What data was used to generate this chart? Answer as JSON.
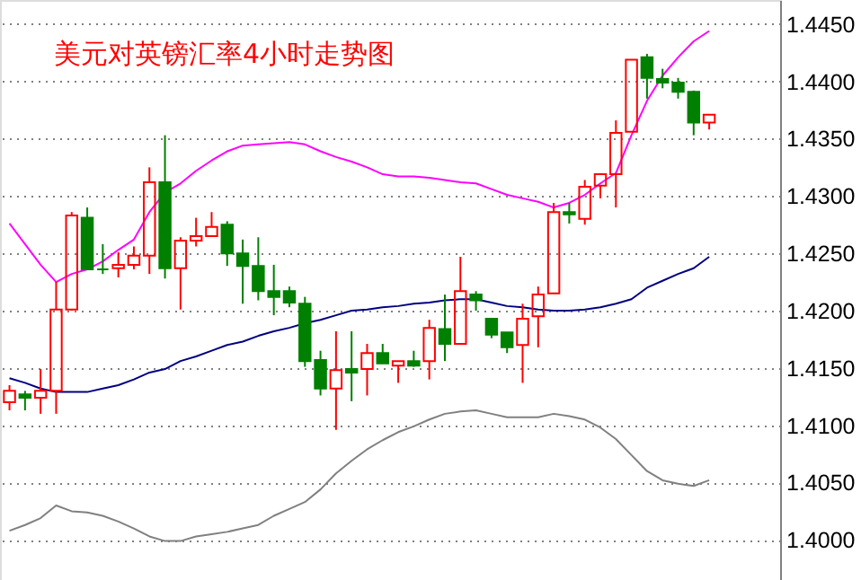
{
  "chart_data": {
    "type": "candlestick",
    "title": "美元对英镑汇率4小时走势图",
    "categories": [
      null,
      null,
      null,
      null,
      null,
      null,
      null,
      null,
      null,
      null,
      null,
      null,
      null,
      null,
      null,
      null,
      null,
      null,
      null,
      null,
      null,
      null,
      null,
      null,
      null,
      null,
      null,
      null,
      null,
      null,
      null,
      null,
      null,
      null,
      null,
      null,
      null,
      null,
      null,
      null,
      null,
      null,
      null,
      null,
      null,
      null
    ],
    "ohlc": [
      [
        1.412,
        1.4135,
        1.4113,
        1.413
      ],
      [
        1.4127,
        1.413,
        1.4113,
        1.4124
      ],
      [
        1.4124,
        1.4149,
        1.411,
        1.413
      ],
      [
        1.413,
        1.4225,
        1.411,
        1.4201
      ],
      [
        1.4201,
        1.4286,
        1.42,
        1.4283
      ],
      [
        1.4281,
        1.429,
        1.4236,
        1.4236
      ],
      [
        1.4236,
        1.4258,
        1.4232,
        1.4236
      ],
      [
        1.4237,
        1.4251,
        1.4229,
        1.424
      ],
      [
        1.424,
        1.4256,
        1.4236,
        1.4248
      ],
      [
        1.4248,
        1.4325,
        1.4232,
        1.4312
      ],
      [
        1.4312,
        1.4353,
        1.4228,
        1.4237
      ],
      [
        1.4237,
        1.4264,
        1.4201,
        1.4261
      ],
      [
        1.4261,
        1.4281,
        1.4256,
        1.4265
      ],
      [
        1.4265,
        1.4286,
        1.4265,
        1.4273
      ],
      [
        1.4275,
        1.4278,
        1.4239,
        1.425
      ],
      [
        1.425,
        1.4262,
        1.4206,
        1.4239
      ],
      [
        1.4239,
        1.4264,
        1.4209,
        1.4217
      ],
      [
        1.4217,
        1.424,
        1.4196,
        1.4212
      ],
      [
        1.4217,
        1.4221,
        1.4203,
        1.4207
      ],
      [
        1.4206,
        1.4212,
        1.4151,
        1.4156
      ],
      [
        1.4157,
        1.4165,
        1.4126,
        1.4132
      ],
      [
        1.4132,
        1.4182,
        1.4096,
        1.4148
      ],
      [
        1.4149,
        1.4182,
        1.4121,
        1.4146
      ],
      [
        1.4149,
        1.4171,
        1.4126,
        1.4163
      ],
      [
        1.4163,
        1.4171,
        1.4154,
        1.4154
      ],
      [
        1.4152,
        1.4156,
        1.4137,
        1.4156
      ],
      [
        1.4156,
        1.4165,
        1.4151,
        1.4152
      ],
      [
        1.4156,
        1.4192,
        1.414,
        1.4185
      ],
      [
        1.4184,
        1.4214,
        1.4156,
        1.4171
      ],
      [
        1.4171,
        1.4247,
        1.4171,
        1.4217
      ],
      [
        1.4214,
        1.4217,
        1.42,
        1.4209
      ],
      [
        1.4193,
        1.4193,
        1.4176,
        1.4179
      ],
      [
        1.4181,
        1.4181,
        1.4163,
        1.4168
      ],
      [
        1.417,
        1.4206,
        1.4137,
        1.4193
      ],
      [
        1.4195,
        1.4221,
        1.4168,
        1.4214
      ],
      [
        1.4215,
        1.4294,
        1.4215,
        1.4286
      ],
      [
        1.4286,
        1.4294,
        1.4276,
        1.4284
      ],
      [
        1.428,
        1.4314,
        1.4275,
        1.4308
      ],
      [
        1.4309,
        1.4319,
        1.4298,
        1.4319
      ],
      [
        1.4319,
        1.4366,
        1.429,
        1.4355
      ],
      [
        1.4356,
        1.4419,
        1.4356,
        1.4419
      ],
      [
        1.4421,
        1.4424,
        1.4385,
        1.4403
      ],
      [
        1.4402,
        1.4411,
        1.4394,
        1.4399
      ],
      [
        1.4399,
        1.4403,
        1.4385,
        1.4391
      ],
      [
        1.4391,
        1.4392,
        1.4353,
        1.4364
      ],
      [
        1.4364,
        1.4371,
        1.4358,
        1.4371
      ]
    ],
    "colors": [
      "#ff0000",
      "#008000",
      "#ff0000",
      "#ff0000",
      "#ff0000",
      "#008000",
      "#008000",
      "#ff0000",
      "#ff0000",
      "#ff0000",
      "#008000",
      "#ff0000",
      "#ff0000",
      "#ff0000",
      "#008000",
      "#008000",
      "#008000",
      "#008000",
      "#008000",
      "#008000",
      "#008000",
      "#ff0000",
      "#008000",
      "#ff0000",
      "#008000",
      "#ff0000",
      "#008000",
      "#ff0000",
      "#008000",
      "#ff0000",
      "#008000",
      "#008000",
      "#008000",
      "#ff0000",
      "#ff0000",
      "#ff0000",
      "#008000",
      "#ff0000",
      "#ff0000",
      "#ff0000",
      "#ff0000",
      "#008000",
      "#008000",
      "#008000",
      "#008000",
      "#ff0000"
    ],
    "series": [
      {
        "type": "line",
        "color": "#ff00ff",
        "values": [
          1.4276,
          1.4258,
          1.424,
          1.4225,
          1.4232,
          1.4236,
          1.4243,
          1.4253,
          1.4262,
          1.4286,
          1.4303,
          1.4311,
          1.4322,
          1.4331,
          1.4339,
          1.4344,
          1.4345,
          1.4346,
          1.4347,
          1.4345,
          1.4339,
          1.4334,
          1.433,
          1.4325,
          1.4319,
          1.4317,
          1.4317,
          1.4316,
          1.4314,
          1.4312,
          1.4311,
          1.4306,
          1.4301,
          1.4298,
          1.4295,
          1.429,
          1.4294,
          1.4301,
          1.4311,
          1.432,
          1.4353,
          1.4383,
          1.4405,
          1.4421,
          1.4435,
          1.4444
        ]
      },
      {
        "type": "line",
        "color": "#000080",
        "values": [
          1.4141,
          1.4137,
          1.4132,
          1.4129,
          1.4129,
          1.4129,
          1.4132,
          1.4135,
          1.414,
          1.4146,
          1.4149,
          1.4156,
          1.416,
          1.4165,
          1.417,
          1.4173,
          1.4178,
          1.4182,
          1.4185,
          1.4189,
          1.4192,
          1.4196,
          1.42,
          1.4201,
          1.4203,
          1.4204,
          1.4206,
          1.4207,
          1.4209,
          1.421,
          1.421,
          1.4207,
          1.4204,
          1.4203,
          1.4201,
          1.42,
          1.42,
          1.4201,
          1.4203,
          1.4206,
          1.421,
          1.422,
          1.4226,
          1.4232,
          1.4237,
          1.4247
        ]
      },
      {
        "type": "line",
        "color": "#808080",
        "values": [
          1.4008,
          1.4013,
          1.4019,
          1.403,
          1.4025,
          1.4024,
          1.4021,
          1.4016,
          1.401,
          1.4003,
          1.3999,
          1.3999,
          1.4003,
          1.4005,
          1.4007,
          1.401,
          1.4013,
          1.4021,
          1.4027,
          1.4033,
          1.4044,
          1.4058,
          1.4069,
          1.4079,
          1.4087,
          1.4094,
          1.4099,
          1.4105,
          1.411,
          1.4112,
          1.4113,
          1.411,
          1.4107,
          1.4107,
          1.4107,
          1.411,
          1.4108,
          1.4105,
          1.4098,
          1.4088,
          1.4074,
          1.406,
          1.4052,
          1.4049,
          1.4047,
          1.4052
        ]
      }
    ],
    "ylim": [
      1.3965,
      1.4471
    ],
    "yticks": [
      {
        "value": 1.4,
        "label": "1.4000"
      },
      {
        "value": 1.405,
        "label": "1.4050"
      },
      {
        "value": 1.41,
        "label": "1.4100"
      },
      {
        "value": 1.415,
        "label": "1.4150"
      },
      {
        "value": 1.42,
        "label": "1.4200"
      },
      {
        "value": 1.425,
        "label": "1.4250"
      },
      {
        "value": 1.43,
        "label": "1.4300"
      },
      {
        "value": 1.435,
        "label": "1.4350"
      },
      {
        "value": 1.44,
        "label": "1.4400"
      },
      {
        "value": 1.445,
        "label": "1.4450"
      }
    ],
    "grid": "y",
    "tick_labels": "y"
  }
}
